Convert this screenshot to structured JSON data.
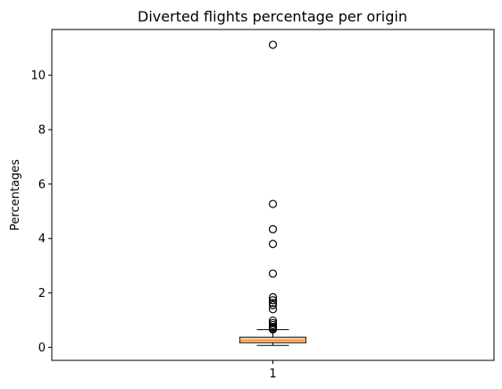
{
  "chart_data": {
    "type": "box",
    "title": "Diverted flights percentage per origin",
    "xlabel": "",
    "ylabel": "Percentages",
    "categories": [
      "1"
    ],
    "ylim": [
      -0.48,
      11.68
    ],
    "yticks": [
      0,
      2,
      4,
      6,
      8,
      10
    ],
    "grid": false,
    "box": {
      "whisker_low": 0.07,
      "q1": 0.17,
      "median": 0.26,
      "q3": 0.37,
      "whisker_high": 0.65
    },
    "outliers": [
      11.12,
      5.27,
      4.34,
      3.8,
      2.71,
      1.84,
      1.73,
      1.63,
      1.55,
      1.4,
      0.98,
      0.89,
      0.82,
      0.75,
      0.7,
      0.66
    ],
    "colors": {
      "box_face": "#fdd9b5",
      "median": "#f58518",
      "outline": "#000000"
    }
  }
}
